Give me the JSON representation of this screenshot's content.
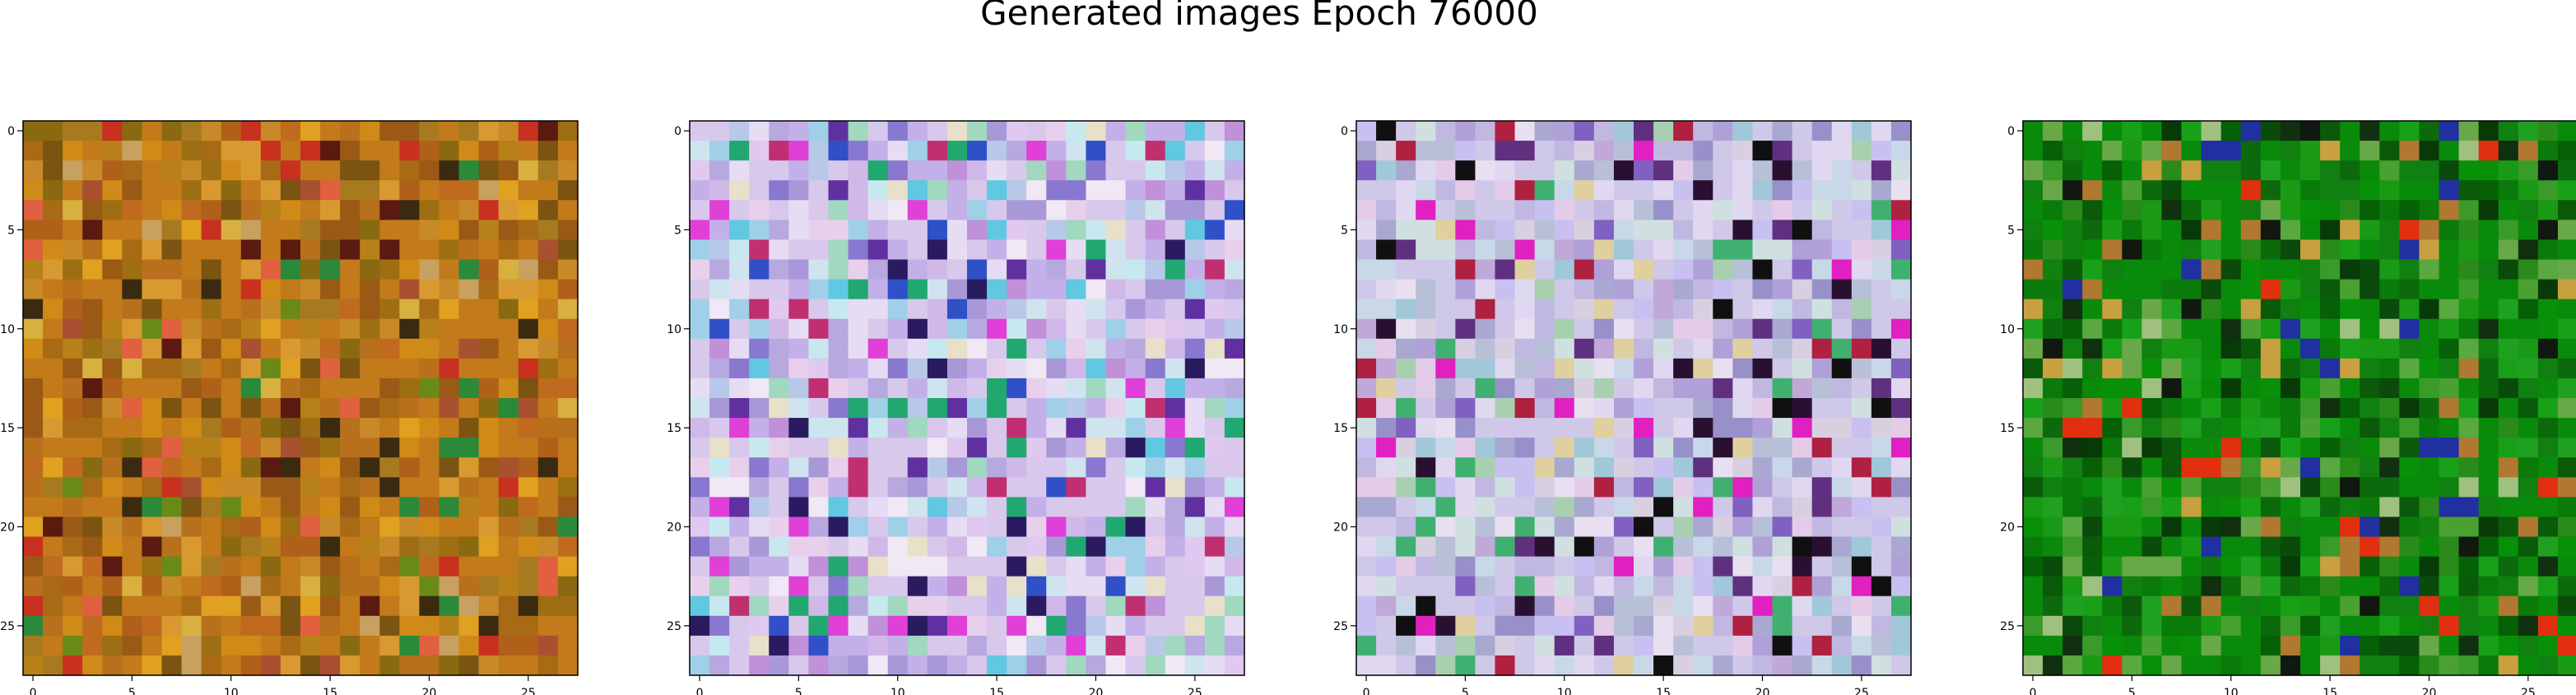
{
  "figure": {
    "title": "Generated images Epoch 76000"
  },
  "chart_data": [
    {
      "type": "heatmap",
      "title": "",
      "xlabel": "",
      "ylabel": "",
      "grid": false,
      "xlim": [
        -0.5,
        27.5
      ],
      "ylim": [
        27.5,
        -0.5
      ],
      "xticks": [
        0,
        5,
        10,
        15,
        20,
        25
      ],
      "yticks": [
        0,
        5,
        10,
        15,
        20,
        25
      ],
      "rows": 28,
      "cols": 28,
      "palette": [
        "#c27a1a",
        "#b8701c",
        "#d08a18",
        "#a86a14",
        "#9a5a16",
        "#c88a28",
        "#b06018",
        "#8a6a10",
        "#d89a30",
        "#a87a20",
        "#7a5410",
        "#c06a20",
        "#e0a020",
        "#b88018",
        "#9e6e12",
        "#6a8a18",
        "#5a1a10",
        "#c83020",
        "#2a8a3a",
        "#a85030",
        "#d8b040",
        "#3a2a10",
        "#e06040",
        "#c8a060"
      ],
      "seed": 11
    },
    {
      "type": "heatmap",
      "title": "",
      "xlabel": "",
      "ylabel": "",
      "grid": false,
      "xlim": [
        -0.5,
        27.5
      ],
      "ylim": [
        27.5,
        -0.5
      ],
      "xticks": [
        0,
        5,
        10,
        15,
        20,
        25
      ],
      "yticks": [
        0,
        5,
        10,
        15,
        20,
        25
      ],
      "rows": 28,
      "cols": 28,
      "palette": [
        "#d8c8ec",
        "#c4b0e8",
        "#e6dcf4",
        "#b8a8e0",
        "#cfe4ee",
        "#e8d0ec",
        "#a898d8",
        "#9fd0e8",
        "#d0b8e8",
        "#f0e8f4",
        "#b8c8e8",
        "#c8e8f0",
        "#8878d0",
        "#c090d8",
        "#e0c8f0",
        "#60c8e0",
        "#3050c8",
        "#a0d8c0",
        "#2a1a60",
        "#c03070",
        "#e040d8",
        "#20a870",
        "#6030a0",
        "#e8e0c8"
      ],
      "seed": 23
    },
    {
      "type": "heatmap",
      "title": "",
      "xlabel": "",
      "ylabel": "",
      "grid": false,
      "xlim": [
        -0.5,
        27.5
      ],
      "ylim": [
        27.5,
        -0.5
      ],
      "xticks": [
        0,
        5,
        10,
        15,
        20,
        25
      ],
      "yticks": [
        0,
        5,
        10,
        15,
        20,
        25
      ],
      "rows": 28,
      "cols": 28,
      "palette": [
        "#d0c8e8",
        "#c0b8e0",
        "#e0d8f0",
        "#b8c0d8",
        "#c8d8e8",
        "#e4cce8",
        "#a8a8d0",
        "#c8c0f0",
        "#d8d0e0",
        "#b0a0d8",
        "#e8e0f0",
        "#9890c8",
        "#c0a8d8",
        "#d0e0e0",
        "#a0c8d8",
        "#8060c0",
        "#40b070",
        "#2a1030",
        "#e020c0",
        "#a8d0b0",
        "#603080",
        "#e0d0a0",
        "#b02040",
        "#101010"
      ],
      "seed": 37
    },
    {
      "type": "heatmap",
      "title": "",
      "xlabel": "",
      "ylabel": "",
      "grid": false,
      "xlim": [
        -0.5,
        27.5
      ],
      "ylim": [
        27.5,
        -0.5
      ],
      "xticks": [
        0,
        5,
        10,
        15,
        20,
        25
      ],
      "yticks": [
        0,
        5,
        10,
        15,
        20,
        25
      ],
      "rows": 28,
      "cols": 28,
      "palette": [
        "#0a8a0a",
        "#108010",
        "#1a9a14",
        "#0a7a0a",
        "#089008",
        "#2a8a1a",
        "#0c6a0c",
        "#18a018",
        "#0a5a0a",
        "#3a9a2a",
        "#066006",
        "#20a020",
        "#4aa030",
        "#0a4a0a",
        "#5aa840",
        "#083a08",
        "#68a848",
        "#103010",
        "#b07830",
        "#c8a040",
        "#e03010",
        "#2030a0",
        "#a0c080",
        "#101810"
      ],
      "seed": 53
    }
  ]
}
